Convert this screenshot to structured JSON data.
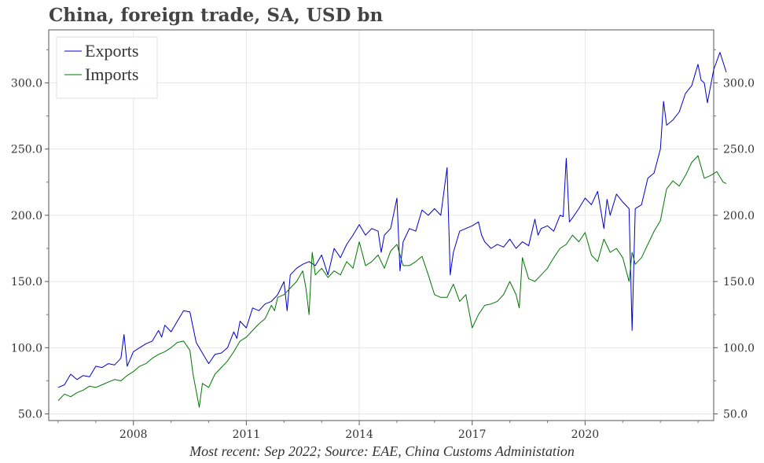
{
  "title": "China, foreign trade, SA, USD bn",
  "source": "Most recent: Sep 2022; Source: EAE, China Customs Administation",
  "chart_data": {
    "type": "line",
    "title": "China, foreign trade, SA, USD bn",
    "xlabel": "",
    "ylabel": "",
    "x_ticks": [
      "2008",
      "2011",
      "2014",
      "2017",
      "2020"
    ],
    "y_ticks": [
      "50.0",
      "100.0",
      "150.0",
      "200.0",
      "250.0",
      "300.0"
    ],
    "xlim": [
      "2005-10",
      "2023-06"
    ],
    "ylim": [
      45,
      340
    ],
    "grid": true,
    "legend_position": "top-left",
    "series": [
      {
        "name": "Exports",
        "color": "#0000cc",
        "points": [
          [
            "2006-01",
            70
          ],
          [
            "2006-03",
            72
          ],
          [
            "2006-05",
            80
          ],
          [
            "2006-07",
            76
          ],
          [
            "2006-09",
            79
          ],
          [
            "2006-11",
            78
          ],
          [
            "2007-01",
            86
          ],
          [
            "2007-03",
            85
          ],
          [
            "2007-05",
            88
          ],
          [
            "2007-07",
            87
          ],
          [
            "2007-09",
            92
          ],
          [
            "2007-10",
            110
          ],
          [
            "2007-11",
            86
          ],
          [
            "2008-01",
            97
          ],
          [
            "2008-03",
            100
          ],
          [
            "2008-05",
            103
          ],
          [
            "2008-07",
            105
          ],
          [
            "2008-09",
            113
          ],
          [
            "2008-10",
            108
          ],
          [
            "2008-11",
            117
          ],
          [
            "2009-01",
            112
          ],
          [
            "2009-03",
            120
          ],
          [
            "2009-05",
            128
          ],
          [
            "2009-07",
            127
          ],
          [
            "2009-09",
            104
          ],
          [
            "2009-11",
            96
          ],
          [
            "2010-01",
            88
          ],
          [
            "2010-03",
            95
          ],
          [
            "2010-05",
            96
          ],
          [
            "2010-07",
            100
          ],
          [
            "2010-09",
            112
          ],
          [
            "2010-10",
            107
          ],
          [
            "2010-11",
            120
          ],
          [
            "2011-01",
            115
          ],
          [
            "2011-03",
            130
          ],
          [
            "2011-05",
            128
          ],
          [
            "2011-07",
            133
          ],
          [
            "2011-09",
            135
          ],
          [
            "2011-11",
            140
          ],
          [
            "2012-01",
            150
          ],
          [
            "2012-02",
            128
          ],
          [
            "2012-03",
            155
          ],
          [
            "2012-05",
            160
          ],
          [
            "2012-07",
            163
          ],
          [
            "2012-09",
            165
          ],
          [
            "2012-11",
            162
          ],
          [
            "2013-01",
            170
          ],
          [
            "2013-03",
            155
          ],
          [
            "2013-05",
            175
          ],
          [
            "2013-07",
            168
          ],
          [
            "2013-09",
            178
          ],
          [
            "2013-11",
            185
          ],
          [
            "2014-01",
            193
          ],
          [
            "2014-03",
            185
          ],
          [
            "2014-05",
            190
          ],
          [
            "2014-07",
            188
          ],
          [
            "2014-08",
            172
          ],
          [
            "2014-09",
            185
          ],
          [
            "2014-11",
            190
          ],
          [
            "2015-01",
            213
          ],
          [
            "2015-02",
            158
          ],
          [
            "2015-03",
            180
          ],
          [
            "2015-05",
            190
          ],
          [
            "2015-07",
            188
          ],
          [
            "2015-09",
            204
          ],
          [
            "2015-11",
            200
          ],
          [
            "2016-01",
            205
          ],
          [
            "2016-03",
            200
          ],
          [
            "2016-05",
            236
          ],
          [
            "2016-06",
            155
          ],
          [
            "2016-07",
            172
          ],
          [
            "2016-09",
            188
          ],
          [
            "2016-11",
            190
          ],
          [
            "2017-01",
            192
          ],
          [
            "2017-03",
            195
          ],
          [
            "2017-04",
            185
          ],
          [
            "2017-05",
            180
          ],
          [
            "2017-07",
            175
          ],
          [
            "2017-09",
            178
          ],
          [
            "2017-11",
            176
          ],
          [
            "2018-01",
            182
          ],
          [
            "2018-03",
            175
          ],
          [
            "2018-05",
            180
          ],
          [
            "2018-07",
            177
          ],
          [
            "2018-09",
            197
          ],
          [
            "2018-10",
            185
          ],
          [
            "2018-11",
            190
          ],
          [
            "2019-01",
            192
          ],
          [
            "2019-03",
            188
          ],
          [
            "2019-05",
            200
          ],
          [
            "2019-06",
            199
          ],
          [
            "2019-07",
            243
          ],
          [
            "2019-08",
            195
          ],
          [
            "2019-09",
            198
          ],
          [
            "2019-11",
            205
          ],
          [
            "2020-01",
            213
          ],
          [
            "2020-03",
            208
          ],
          [
            "2020-05",
            218
          ],
          [
            "2020-07",
            190
          ],
          [
            "2020-08",
            212
          ],
          [
            "2020-09",
            200
          ],
          [
            "2020-11",
            216
          ],
          [
            "2021-01",
            210
          ],
          [
            "2021-03",
            205
          ],
          [
            "2021-04",
            113
          ],
          [
            "2021-05",
            205
          ],
          [
            "2021-07",
            208
          ],
          [
            "2021-09",
            228
          ],
          [
            "2021-11",
            232
          ],
          [
            "2022-01",
            250
          ],
          [
            "2022-02",
            286
          ],
          [
            "2022-03",
            268
          ],
          [
            "2022-05",
            272
          ],
          [
            "2022-07",
            278
          ],
          [
            "2022-09",
            292
          ],
          [
            "2022-11",
            298
          ],
          [
            "2023-01",
            314
          ],
          [
            "2023-02",
            302
          ],
          [
            "2023-03",
            300
          ],
          [
            "2023-04",
            285
          ],
          [
            "2023-06",
            310
          ],
          [
            "2023-08",
            323
          ],
          [
            "2023-10",
            308
          ]
        ]
      },
      {
        "name": "Imports",
        "color": "#007700",
        "points": [
          [
            "2006-01",
            60
          ],
          [
            "2006-03",
            65
          ],
          [
            "2006-05",
            63
          ],
          [
            "2006-07",
            66
          ],
          [
            "2006-09",
            68
          ],
          [
            "2006-11",
            71
          ],
          [
            "2007-01",
            70
          ],
          [
            "2007-03",
            72
          ],
          [
            "2007-05",
            74
          ],
          [
            "2007-07",
            76
          ],
          [
            "2007-09",
            75
          ],
          [
            "2007-11",
            79
          ],
          [
            "2008-01",
            82
          ],
          [
            "2008-03",
            86
          ],
          [
            "2008-05",
            88
          ],
          [
            "2008-07",
            92
          ],
          [
            "2008-09",
            95
          ],
          [
            "2008-11",
            97
          ],
          [
            "2009-01",
            100
          ],
          [
            "2009-03",
            104
          ],
          [
            "2009-05",
            105
          ],
          [
            "2009-07",
            98
          ],
          [
            "2009-08",
            80
          ],
          [
            "2009-10",
            55
          ],
          [
            "2009-11",
            73
          ],
          [
            "2010-01",
            70
          ],
          [
            "2010-03",
            80
          ],
          [
            "2010-05",
            85
          ],
          [
            "2010-07",
            90
          ],
          [
            "2010-09",
            97
          ],
          [
            "2010-11",
            105
          ],
          [
            "2011-01",
            108
          ],
          [
            "2011-03",
            113
          ],
          [
            "2011-05",
            118
          ],
          [
            "2011-07",
            122
          ],
          [
            "2011-09",
            132
          ],
          [
            "2011-10",
            128
          ],
          [
            "2011-11",
            138
          ],
          [
            "2012-01",
            140
          ],
          [
            "2012-03",
            145
          ],
          [
            "2012-05",
            150
          ],
          [
            "2012-07",
            158
          ],
          [
            "2012-08",
            145
          ],
          [
            "2012-09",
            125
          ],
          [
            "2012-10",
            172
          ],
          [
            "2012-11",
            155
          ],
          [
            "2013-01",
            160
          ],
          [
            "2013-03",
            153
          ],
          [
            "2013-05",
            158
          ],
          [
            "2013-07",
            155
          ],
          [
            "2013-09",
            165
          ],
          [
            "2013-11",
            160
          ],
          [
            "2014-01",
            180
          ],
          [
            "2014-03",
            162
          ],
          [
            "2014-05",
            165
          ],
          [
            "2014-07",
            170
          ],
          [
            "2014-09",
            160
          ],
          [
            "2014-11",
            173
          ],
          [
            "2015-01",
            178
          ],
          [
            "2015-03",
            162
          ],
          [
            "2015-05",
            162
          ],
          [
            "2015-07",
            165
          ],
          [
            "2015-09",
            169
          ],
          [
            "2015-11",
            155
          ],
          [
            "2016-01",
            140
          ],
          [
            "2016-03",
            138
          ],
          [
            "2016-05",
            138
          ],
          [
            "2016-07",
            148
          ],
          [
            "2016-09",
            135
          ],
          [
            "2016-11",
            140
          ],
          [
            "2017-01",
            115
          ],
          [
            "2017-03",
            125
          ],
          [
            "2017-05",
            132
          ],
          [
            "2017-07",
            133
          ],
          [
            "2017-09",
            135
          ],
          [
            "2017-11",
            140
          ],
          [
            "2018-01",
            150
          ],
          [
            "2018-03",
            140
          ],
          [
            "2018-04",
            130
          ],
          [
            "2018-05",
            168
          ],
          [
            "2018-07",
            152
          ],
          [
            "2018-09",
            150
          ],
          [
            "2018-11",
            155
          ],
          [
            "2019-01",
            160
          ],
          [
            "2019-03",
            168
          ],
          [
            "2019-05",
            175
          ],
          [
            "2019-07",
            178
          ],
          [
            "2019-09",
            185
          ],
          [
            "2019-11",
            180
          ],
          [
            "2020-01",
            187
          ],
          [
            "2020-03",
            170
          ],
          [
            "2020-05",
            165
          ],
          [
            "2020-07",
            182
          ],
          [
            "2020-09",
            172
          ],
          [
            "2020-11",
            175
          ],
          [
            "2021-01",
            168
          ],
          [
            "2021-03",
            150
          ],
          [
            "2021-04",
            172
          ],
          [
            "2021-05",
            163
          ],
          [
            "2021-07",
            168
          ],
          [
            "2021-09",
            178
          ],
          [
            "2021-11",
            188
          ],
          [
            "2022-01",
            196
          ],
          [
            "2022-03",
            220
          ],
          [
            "2022-05",
            226
          ],
          [
            "2022-07",
            222
          ],
          [
            "2022-09",
            230
          ],
          [
            "2022-11",
            240
          ],
          [
            "2023-01",
            245
          ],
          [
            "2023-03",
            228
          ],
          [
            "2023-05",
            230
          ],
          [
            "2023-07",
            233
          ],
          [
            "2023-09",
            225
          ],
          [
            "2023-10",
            224
          ]
        ]
      }
    ]
  }
}
